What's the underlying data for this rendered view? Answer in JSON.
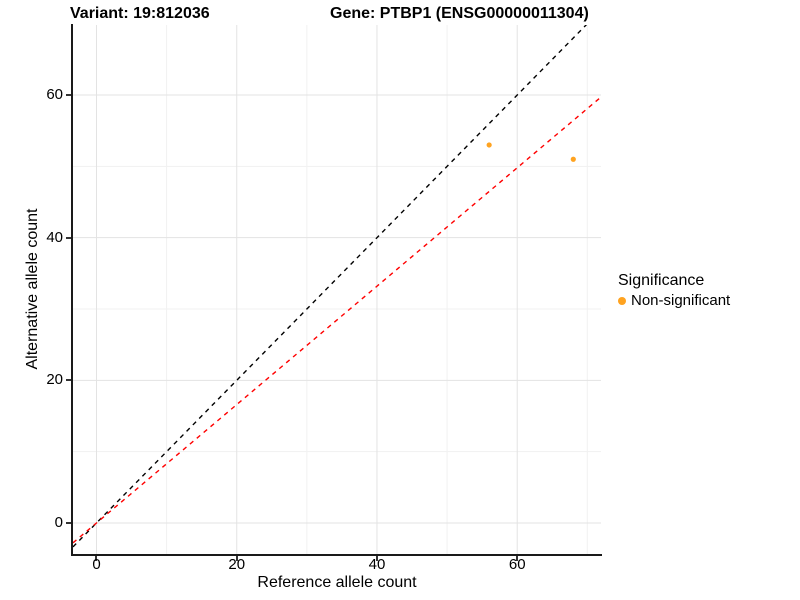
{
  "chart_data": {
    "type": "scatter",
    "title_variant": "Variant: 19:812036",
    "title_gene": "Gene: PTBP1 (ENSG00000011304)",
    "xlabel": "Reference allele count",
    "ylabel": "Alternative allele count",
    "x_ticks": [
      0,
      20,
      40,
      60
    ],
    "y_ticks": [
      0,
      20,
      40,
      60
    ],
    "x_minor_ticks": [
      10,
      30,
      50,
      70
    ],
    "y_minor_ticks": [
      10,
      30,
      50,
      70
    ],
    "x_range": [
      -3.35,
      71.95
    ],
    "y_range": [
      -4.35,
      69.82
    ],
    "grid": true,
    "points": [
      {
        "x": 56,
        "y": 53,
        "significance": "Non-significant"
      },
      {
        "x": 68,
        "y": 51,
        "significance": "Non-significant"
      }
    ],
    "lines": [
      {
        "name": "identity-line",
        "slope": 1,
        "intercept": 0,
        "color": "#000000",
        "style": "dashed"
      },
      {
        "name": "expected-ratio-line",
        "slope": 0.83,
        "intercept": 0,
        "color": "#ff0000",
        "style": "dashed"
      }
    ],
    "legend": {
      "title": "Significance",
      "position": "right",
      "items": [
        {
          "label": "Non-significant",
          "color": "#ffa320"
        }
      ]
    },
    "colors": {
      "point": "#ffa320",
      "grid_major": "#e3e3e3",
      "grid_minor": "#f1f1f1",
      "axis_line": "#1a1a1a",
      "identity_line": "#000000",
      "expected_line": "#ff0000"
    }
  }
}
